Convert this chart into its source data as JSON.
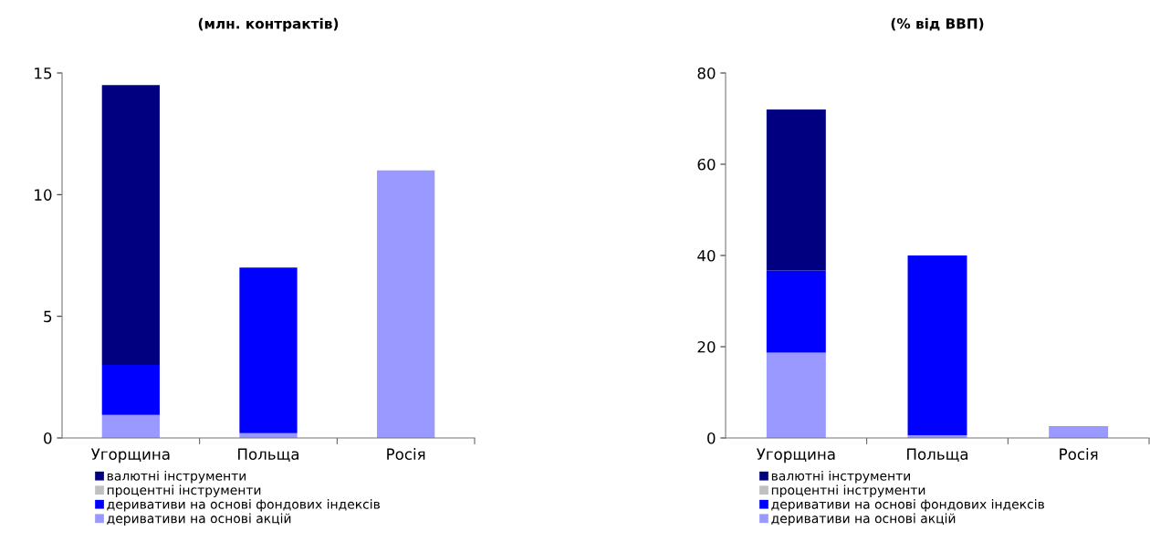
{
  "chart_data": [
    {
      "type": "bar",
      "title": "(млн. контрактів)",
      "stacked": true,
      "legend": "bottom",
      "grid": false,
      "categories": [
        "Угорщина",
        "Польща",
        "Росія"
      ],
      "ylim": [
        0,
        15
      ],
      "yticks": [
        0,
        5,
        10,
        15
      ],
      "series": [
        {
          "name": "деривативи на основі акцій",
          "color": "#9999ff",
          "values": [
            0.95,
            0.2,
            11.0
          ]
        },
        {
          "name": "деривативи на основі фондових індексів",
          "color": "#0000ff",
          "values": [
            2.05,
            6.8,
            0
          ]
        },
        {
          "name": "процентні інструменти",
          "color": "#c0c0c0",
          "values": [
            0,
            0,
            0
          ]
        },
        {
          "name": "валютні інструменти",
          "color": "#000080",
          "values": [
            11.5,
            0,
            0
          ]
        }
      ]
    },
    {
      "type": "bar",
      "title": "(% від ВВП)",
      "stacked": true,
      "legend": "bottom",
      "grid": false,
      "categories": [
        "Угорщина",
        "Польща",
        "Росія"
      ],
      "ylim": [
        0,
        80
      ],
      "yticks": [
        0,
        20,
        40,
        60,
        80
      ],
      "series": [
        {
          "name": "деривативи на основі акцій",
          "color": "#9999ff",
          "values": [
            18.7,
            0.6,
            2.6
          ]
        },
        {
          "name": "деривативи на основі фондових індексів",
          "color": "#0000ff",
          "values": [
            18.0,
            39.4,
            0
          ]
        },
        {
          "name": "процентні інструменти",
          "color": "#c0c0c0",
          "values": [
            0,
            0,
            0
          ]
        },
        {
          "name": "валютні інструменти",
          "color": "#000080",
          "values": [
            35.3,
            0,
            0
          ]
        }
      ]
    }
  ]
}
